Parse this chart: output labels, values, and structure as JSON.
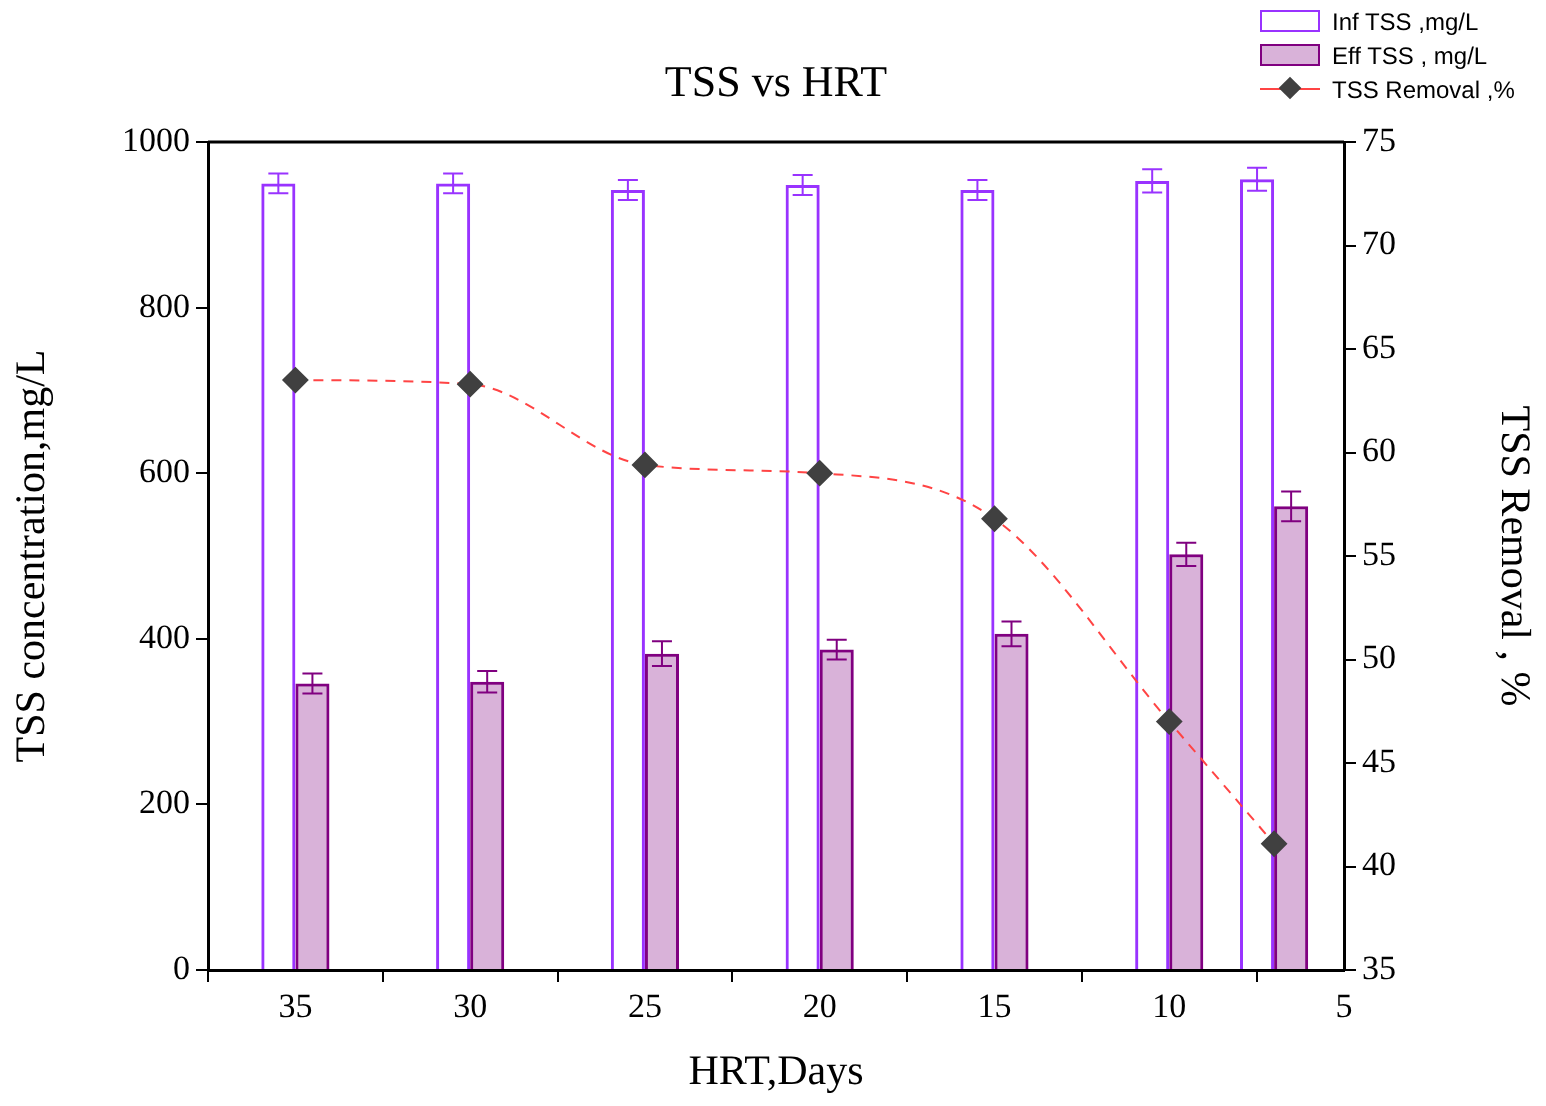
{
  "chart_data": {
    "type": "bar",
    "title": "TSS vs HRT",
    "xlabel": "HRT,Days",
    "ylabel": "TSS concentration,mg/L",
    "y2label": "TSS Removal , %",
    "x": [
      35,
      30,
      25,
      20,
      15,
      10,
      7
    ],
    "xlim": [
      37.5,
      5
    ],
    "xticks": [
      35,
      30,
      25,
      20,
      15,
      10,
      5
    ],
    "ylim": [
      0,
      1000
    ],
    "yticks": [
      0,
      200,
      400,
      600,
      800,
      1000
    ],
    "y2lim": [
      35,
      75
    ],
    "y2ticks": [
      35,
      40,
      45,
      50,
      55,
      60,
      65,
      70,
      75
    ],
    "grid": false,
    "legend": "top right",
    "marker": "diamond",
    "line_style": "dashed",
    "series": [
      {
        "name": "Inf TSS ,mg/L",
        "color": "#9933ff",
        "values": [
          950,
          950,
          942,
          948,
          942,
          953,
          955
        ],
        "errors": [
          12,
          12,
          12,
          12,
          12,
          14,
          14
        ]
      },
      {
        "name": "Eff TSS , mg/L",
        "color": "#800080",
        "values": [
          346,
          348,
          382,
          387,
          406,
          502,
          560
        ],
        "errors": [
          12,
          13,
          15,
          12,
          15,
          14,
          18
        ]
      },
      {
        "name": "TSS Removal ,%",
        "type": "line",
        "axis": "y2",
        "color": "#404040",
        "values": [
          63.5,
          63.3,
          59.4,
          59.0,
          56.8,
          47.0,
          41.1
        ]
      }
    ]
  }
}
